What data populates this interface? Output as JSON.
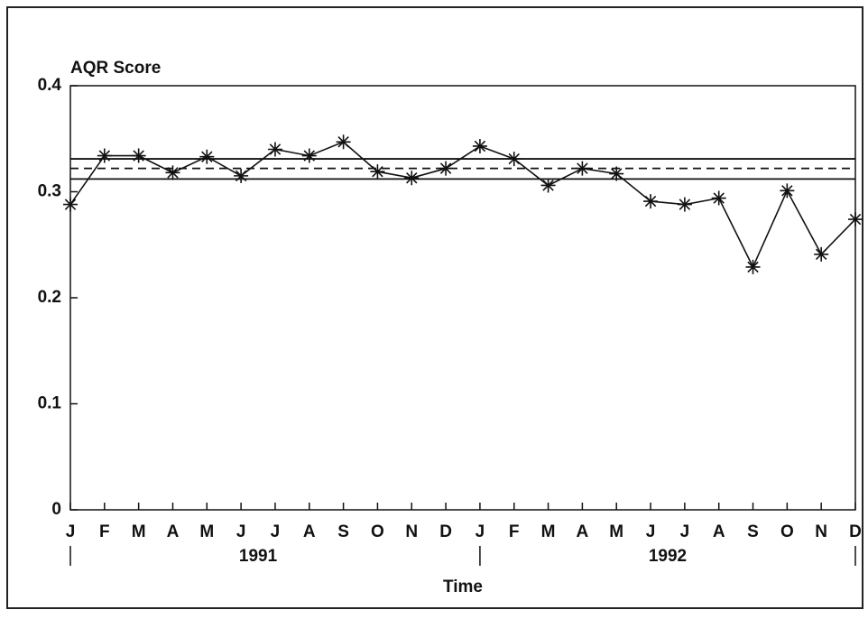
{
  "chart_data": {
    "type": "line",
    "y_label": "AQR Score",
    "x_label": "Time",
    "categories": [
      "J",
      "F",
      "M",
      "A",
      "M",
      "J",
      "J",
      "A",
      "S",
      "O",
      "N",
      "D",
      "J",
      "F",
      "M",
      "A",
      "M",
      "J",
      "J",
      "A",
      "S",
      "O",
      "N",
      "D"
    ],
    "groups": [
      "1991",
      "1992"
    ],
    "series": [
      {
        "color": "#111111",
        "marker": "asterisk",
        "values": [
          0.288,
          0.334,
          0.334,
          0.318,
          0.333,
          0.315,
          0.34,
          0.334,
          0.347,
          0.319,
          0.313,
          0.322,
          0.343,
          0.331,
          0.306,
          0.322,
          0.317,
          0.291,
          0.288,
          0.294,
          0.229,
          0.301,
          0.241,
          0.274
        ]
      }
    ],
    "reference_lines": [
      {
        "value": 0.331,
        "style": "solid"
      },
      {
        "value": 0.322,
        "style": "dashed"
      },
      {
        "value": 0.312,
        "style": "solid"
      }
    ],
    "ylim": [
      0,
      0.4
    ],
    "yticks": [
      0,
      0.1,
      0.2,
      0.3,
      0.4
    ]
  }
}
